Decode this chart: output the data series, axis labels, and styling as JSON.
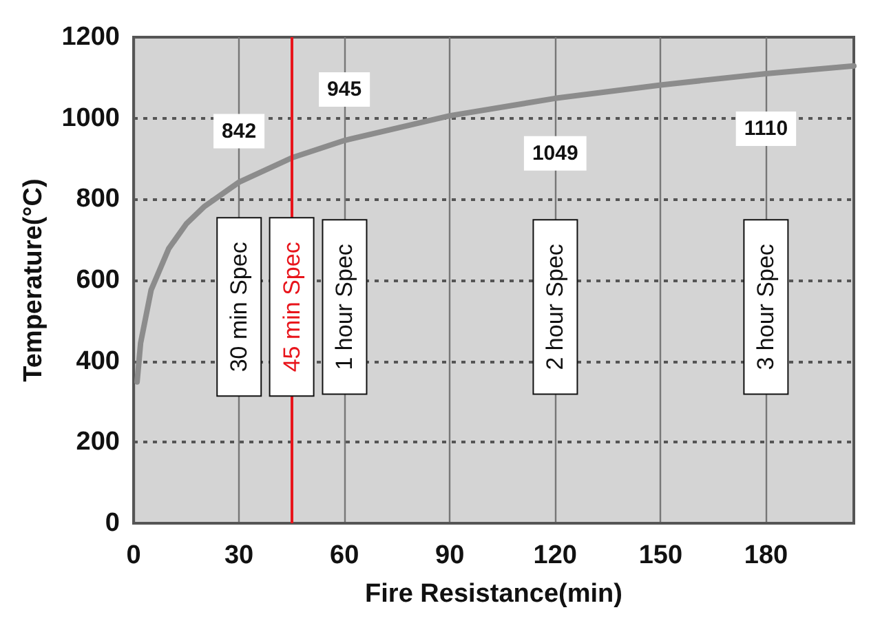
{
  "chart_data": {
    "type": "line",
    "xlabel": "Fire Resistance(min)",
    "ylabel": "Temperature(°C)",
    "x": [
      1,
      2,
      5,
      10,
      15,
      20,
      30,
      45,
      60,
      90,
      120,
      150,
      180,
      205
    ],
    "series": [
      {
        "color": "#8c8c8c",
        "values": [
          349,
          445,
          576,
          678,
          739,
          781,
          842,
          902,
          945,
          1006,
          1049,
          1082,
          1110,
          1129
        ]
      }
    ],
    "xlim": [
      0,
      205
    ],
    "xticks": [
      0,
      30,
      60,
      90,
      120,
      150,
      180
    ],
    "ylim": [
      0,
      1200
    ],
    "yticks": [
      0,
      200,
      400,
      600,
      800,
      1000,
      1200
    ],
    "grid": true,
    "marker": "none",
    "line_style": "solid",
    "ref_lines": [
      {
        "axis": "x",
        "value": 45,
        "label": "45 min Spec",
        "color": "#e8141b"
      }
    ],
    "annotations": [
      {
        "text": "842",
        "x": 30,
        "y": 842
      },
      {
        "text": "945",
        "x": 60,
        "y": 945
      },
      {
        "text": "1049",
        "x": 120,
        "y": 1049
      },
      {
        "text": "1110",
        "x": 180,
        "y": 1110
      },
      "30 min Spec",
      "1 hour Spec",
      "2 hour Spec",
      "3 hour Spec"
    ]
  }
}
